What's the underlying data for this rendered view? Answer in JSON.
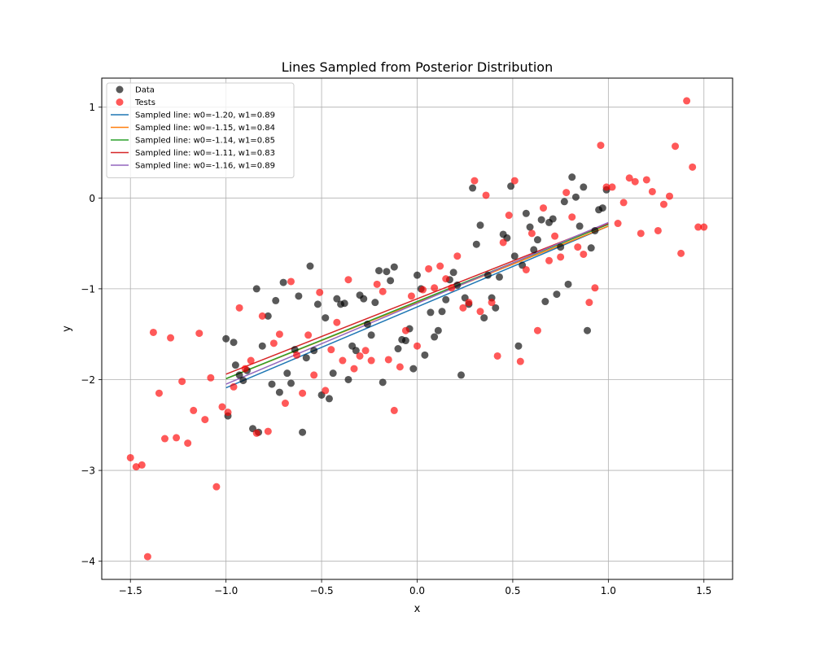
{
  "chart_data": {
    "type": "scatter",
    "title": "Lines Sampled from Posterior Distribution",
    "xlabel": "x",
    "ylabel": "y",
    "xlim": [
      -1.65,
      1.65
    ],
    "ylim": [
      -4.2,
      1.32
    ],
    "grid": true,
    "legend_position": "top-left",
    "x_ticks": [
      {
        "value": -1.5,
        "label": "−1.5"
      },
      {
        "value": -1.0,
        "label": "−1.0"
      },
      {
        "value": -0.5,
        "label": "−0.5"
      },
      {
        "value": 0.0,
        "label": "0.0"
      },
      {
        "value": 0.5,
        "label": "0.5"
      },
      {
        "value": 1.0,
        "label": "1.0"
      },
      {
        "value": 1.5,
        "label": "1.5"
      }
    ],
    "y_ticks": [
      {
        "value": 1,
        "label": "1"
      },
      {
        "value": 0,
        "label": "0"
      },
      {
        "value": -1,
        "label": "−1"
      },
      {
        "value": -2,
        "label": "−2"
      },
      {
        "value": -3,
        "label": "−3"
      },
      {
        "value": -4,
        "label": "−4"
      }
    ],
    "scatter_series": [
      {
        "name": "Data",
        "color": "#000000",
        "opacity": 0.65,
        "points": [
          [
            -1.0,
            -1.55
          ],
          [
            -0.99,
            -2.4
          ],
          [
            -0.96,
            -1.59
          ],
          [
            -0.95,
            -1.84
          ],
          [
            -0.93,
            -1.95
          ],
          [
            -0.91,
            -2.01
          ],
          [
            -0.89,
            -1.9
          ],
          [
            -0.86,
            -2.54
          ],
          [
            -0.84,
            -1.0
          ],
          [
            -0.83,
            -2.58
          ],
          [
            -0.81,
            -1.63
          ],
          [
            -0.78,
            -1.3
          ],
          [
            -0.76,
            -2.05
          ],
          [
            -0.74,
            -1.13
          ],
          [
            -0.72,
            -2.14
          ],
          [
            -0.7,
            -0.93
          ],
          [
            -0.68,
            -1.93
          ],
          [
            -0.66,
            -2.04
          ],
          [
            -0.64,
            -1.67
          ],
          [
            -0.62,
            -1.08
          ],
          [
            -0.6,
            -2.58
          ],
          [
            -0.58,
            -1.76
          ],
          [
            -0.56,
            -0.75
          ],
          [
            -0.54,
            -1.68
          ],
          [
            -0.52,
            -1.17
          ],
          [
            -0.5,
            -2.17
          ],
          [
            -0.48,
            -1.32
          ],
          [
            -0.46,
            -2.21
          ],
          [
            -0.44,
            -1.93
          ],
          [
            -0.42,
            -1.11
          ],
          [
            -0.4,
            -1.17
          ],
          [
            -0.38,
            -1.16
          ],
          [
            -0.36,
            -2.0
          ],
          [
            -0.34,
            -1.63
          ],
          [
            -0.32,
            -1.68
          ],
          [
            -0.3,
            -1.07
          ],
          [
            -0.28,
            -1.11
          ],
          [
            -0.26,
            -1.39
          ],
          [
            -0.24,
            -1.51
          ],
          [
            -0.22,
            -1.15
          ],
          [
            -0.2,
            -0.8
          ],
          [
            -0.18,
            -2.03
          ],
          [
            -0.16,
            -0.81
          ],
          [
            -0.14,
            -0.91
          ],
          [
            -0.12,
            -0.76
          ],
          [
            -0.1,
            -1.66
          ],
          [
            -0.08,
            -1.56
          ],
          [
            -0.06,
            -1.57
          ],
          [
            -0.04,
            -1.44
          ],
          [
            -0.02,
            -1.88
          ],
          [
            0.0,
            -0.85
          ],
          [
            0.02,
            -1.0
          ],
          [
            0.04,
            -1.73
          ],
          [
            0.07,
            -1.26
          ],
          [
            0.09,
            -1.53
          ],
          [
            0.11,
            -1.46
          ],
          [
            0.13,
            -1.25
          ],
          [
            0.15,
            -1.12
          ],
          [
            0.17,
            -0.9
          ],
          [
            0.19,
            -0.82
          ],
          [
            0.21,
            -0.96
          ],
          [
            0.23,
            -1.95
          ],
          [
            0.25,
            -1.1
          ],
          [
            0.27,
            -1.17
          ],
          [
            0.29,
            0.11
          ],
          [
            0.31,
            -0.51
          ],
          [
            0.33,
            -0.3
          ],
          [
            0.35,
            -1.32
          ],
          [
            0.37,
            -0.85
          ],
          [
            0.39,
            -1.1
          ],
          [
            0.41,
            -1.21
          ],
          [
            0.43,
            -0.87
          ],
          [
            0.45,
            -0.4
          ],
          [
            0.47,
            -0.44
          ],
          [
            0.49,
            0.13
          ],
          [
            0.51,
            -0.64
          ],
          [
            0.53,
            -1.63
          ],
          [
            0.55,
            -0.74
          ],
          [
            0.57,
            -0.17
          ],
          [
            0.59,
            -0.32
          ],
          [
            0.61,
            -0.57
          ],
          [
            0.63,
            -0.46
          ],
          [
            0.65,
            -0.24
          ],
          [
            0.67,
            -1.14
          ],
          [
            0.69,
            -0.27
          ],
          [
            0.71,
            -0.23
          ],
          [
            0.73,
            -1.06
          ],
          [
            0.75,
            -0.54
          ],
          [
            0.77,
            -0.04
          ],
          [
            0.79,
            -0.95
          ],
          [
            0.81,
            0.23
          ],
          [
            0.83,
            0.01
          ],
          [
            0.85,
            -0.31
          ],
          [
            0.87,
            0.12
          ],
          [
            0.89,
            -1.46
          ],
          [
            0.91,
            -0.55
          ],
          [
            0.93,
            -0.36
          ],
          [
            0.95,
            -0.13
          ],
          [
            0.97,
            -0.11
          ],
          [
            0.99,
            0.09
          ]
        ]
      },
      {
        "name": "Tests",
        "color": "#ff0000",
        "opacity": 0.65,
        "points": [
          [
            -1.5,
            -2.86
          ],
          [
            -1.47,
            -2.96
          ],
          [
            -1.44,
            -2.94
          ],
          [
            -1.41,
            -3.95
          ],
          [
            -1.38,
            -1.48
          ],
          [
            -1.35,
            -2.15
          ],
          [
            -1.32,
            -2.65
          ],
          [
            -1.29,
            -1.54
          ],
          [
            -1.26,
            -2.64
          ],
          [
            -1.23,
            -2.02
          ],
          [
            -1.2,
            -2.7
          ],
          [
            -1.17,
            -2.34
          ],
          [
            -1.14,
            -1.49
          ],
          [
            -1.11,
            -2.44
          ],
          [
            -1.08,
            -1.98
          ],
          [
            -1.05,
            -3.18
          ],
          [
            -1.02,
            -2.3
          ],
          [
            -0.99,
            -2.36
          ],
          [
            -0.96,
            -2.08
          ],
          [
            -0.93,
            -1.21
          ],
          [
            -0.9,
            -1.88
          ],
          [
            -0.87,
            -1.79
          ],
          [
            -0.84,
            -2.59
          ],
          [
            -0.81,
            -1.3
          ],
          [
            -0.78,
            -2.57
          ],
          [
            -0.75,
            -1.6
          ],
          [
            -0.72,
            -1.5
          ],
          [
            -0.69,
            -2.26
          ],
          [
            -0.66,
            -0.92
          ],
          [
            -0.63,
            -1.73
          ],
          [
            -0.6,
            -2.15
          ],
          [
            -0.57,
            -1.51
          ],
          [
            -0.54,
            -1.95
          ],
          [
            -0.51,
            -1.04
          ],
          [
            -0.48,
            -2.12
          ],
          [
            -0.45,
            -1.67
          ],
          [
            -0.42,
            -1.37
          ],
          [
            -0.39,
            -1.79
          ],
          [
            -0.36,
            -0.9
          ],
          [
            -0.33,
            -1.88
          ],
          [
            -0.3,
            -1.74
          ],
          [
            -0.27,
            -1.68
          ],
          [
            -0.24,
            -1.79
          ],
          [
            -0.21,
            -0.95
          ],
          [
            -0.18,
            -1.03
          ],
          [
            -0.15,
            -1.78
          ],
          [
            -0.12,
            -2.34
          ],
          [
            -0.09,
            -1.86
          ],
          [
            -0.06,
            -1.46
          ],
          [
            -0.03,
            -1.08
          ],
          [
            0.0,
            -1.63
          ],
          [
            0.03,
            -1.01
          ],
          [
            0.06,
            -0.78
          ],
          [
            0.09,
            -0.99
          ],
          [
            0.12,
            -0.75
          ],
          [
            0.15,
            -0.89
          ],
          [
            0.18,
            -0.99
          ],
          [
            0.21,
            -0.64
          ],
          [
            0.24,
            -1.21
          ],
          [
            0.27,
            -1.15
          ],
          [
            0.3,
            0.19
          ],
          [
            0.33,
            -1.25
          ],
          [
            0.36,
            0.03
          ],
          [
            0.39,
            -1.15
          ],
          [
            0.42,
            -1.74
          ],
          [
            0.45,
            -0.49
          ],
          [
            0.48,
            -0.19
          ],
          [
            0.51,
            0.19
          ],
          [
            0.54,
            -1.8
          ],
          [
            0.57,
            -0.79
          ],
          [
            0.6,
            -0.39
          ],
          [
            0.63,
            -1.46
          ],
          [
            0.66,
            -0.11
          ],
          [
            0.69,
            -0.69
          ],
          [
            0.72,
            -0.42
          ],
          [
            0.75,
            -0.65
          ],
          [
            0.78,
            0.06
          ],
          [
            0.81,
            -0.21
          ],
          [
            0.84,
            -0.54
          ],
          [
            0.87,
            -0.62
          ],
          [
            0.9,
            -1.15
          ],
          [
            0.93,
            -0.99
          ],
          [
            0.96,
            0.58
          ],
          [
            0.99,
            0.12
          ],
          [
            1.02,
            0.12
          ],
          [
            1.05,
            -0.28
          ],
          [
            1.08,
            -0.05
          ],
          [
            1.11,
            0.22
          ],
          [
            1.14,
            0.18
          ],
          [
            1.17,
            -0.39
          ],
          [
            1.2,
            0.2
          ],
          [
            1.23,
            0.07
          ],
          [
            1.26,
            -0.36
          ],
          [
            1.29,
            -0.07
          ],
          [
            1.32,
            0.02
          ],
          [
            1.35,
            0.57
          ],
          [
            1.38,
            -0.61
          ],
          [
            1.41,
            1.07
          ],
          [
            1.44,
            0.34
          ],
          [
            1.47,
            -0.32
          ],
          [
            1.5,
            -0.32
          ]
        ]
      }
    ],
    "line_series": [
      {
        "name": "Sampled line: w0=-1.20, w1=0.89",
        "color": "#1f77b4",
        "w0": -1.2,
        "w1": 0.89,
        "x_range": [
          -1.0,
          1.0
        ]
      },
      {
        "name": "Sampled line: w0=-1.15, w1=0.84",
        "color": "#ff7f0e",
        "w0": -1.15,
        "w1": 0.84,
        "x_range": [
          -1.0,
          1.0
        ]
      },
      {
        "name": "Sampled line: w0=-1.14, w1=0.85",
        "color": "#2ca02c",
        "w0": -1.14,
        "w1": 0.85,
        "x_range": [
          -1.0,
          1.0
        ]
      },
      {
        "name": "Sampled line: w0=-1.11, w1=0.83",
        "color": "#d62728",
        "w0": -1.11,
        "w1": 0.83,
        "x_range": [
          -1.0,
          1.0
        ]
      },
      {
        "name": "Sampled line: w0=-1.16, w1=0.89",
        "color": "#9467bd",
        "w0": -1.16,
        "w1": 0.89,
        "x_range": [
          -1.0,
          1.0
        ]
      }
    ]
  }
}
